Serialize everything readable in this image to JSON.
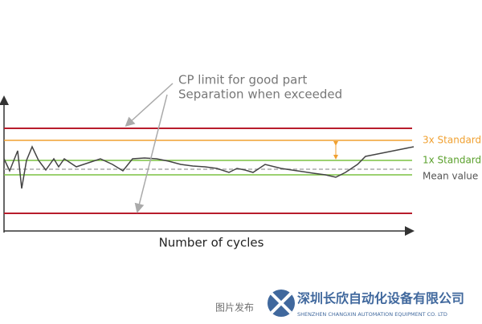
{
  "annotation": {
    "line1": "CP limit for good part",
    "line2": "Separation when exceeded"
  },
  "labels": {
    "three_x": "3x Standard",
    "one_x": "1x Standard",
    "mean": "Mean value"
  },
  "x_axis_label": "Number of cycles",
  "watermark": {
    "company_cn": "深圳长欣自动化设备有限公司",
    "company_en": "SHENZHEN CHANGXIN AUTOMATION EQUIPMENT CO. LTD",
    "caption": "图片发布"
  }
}
